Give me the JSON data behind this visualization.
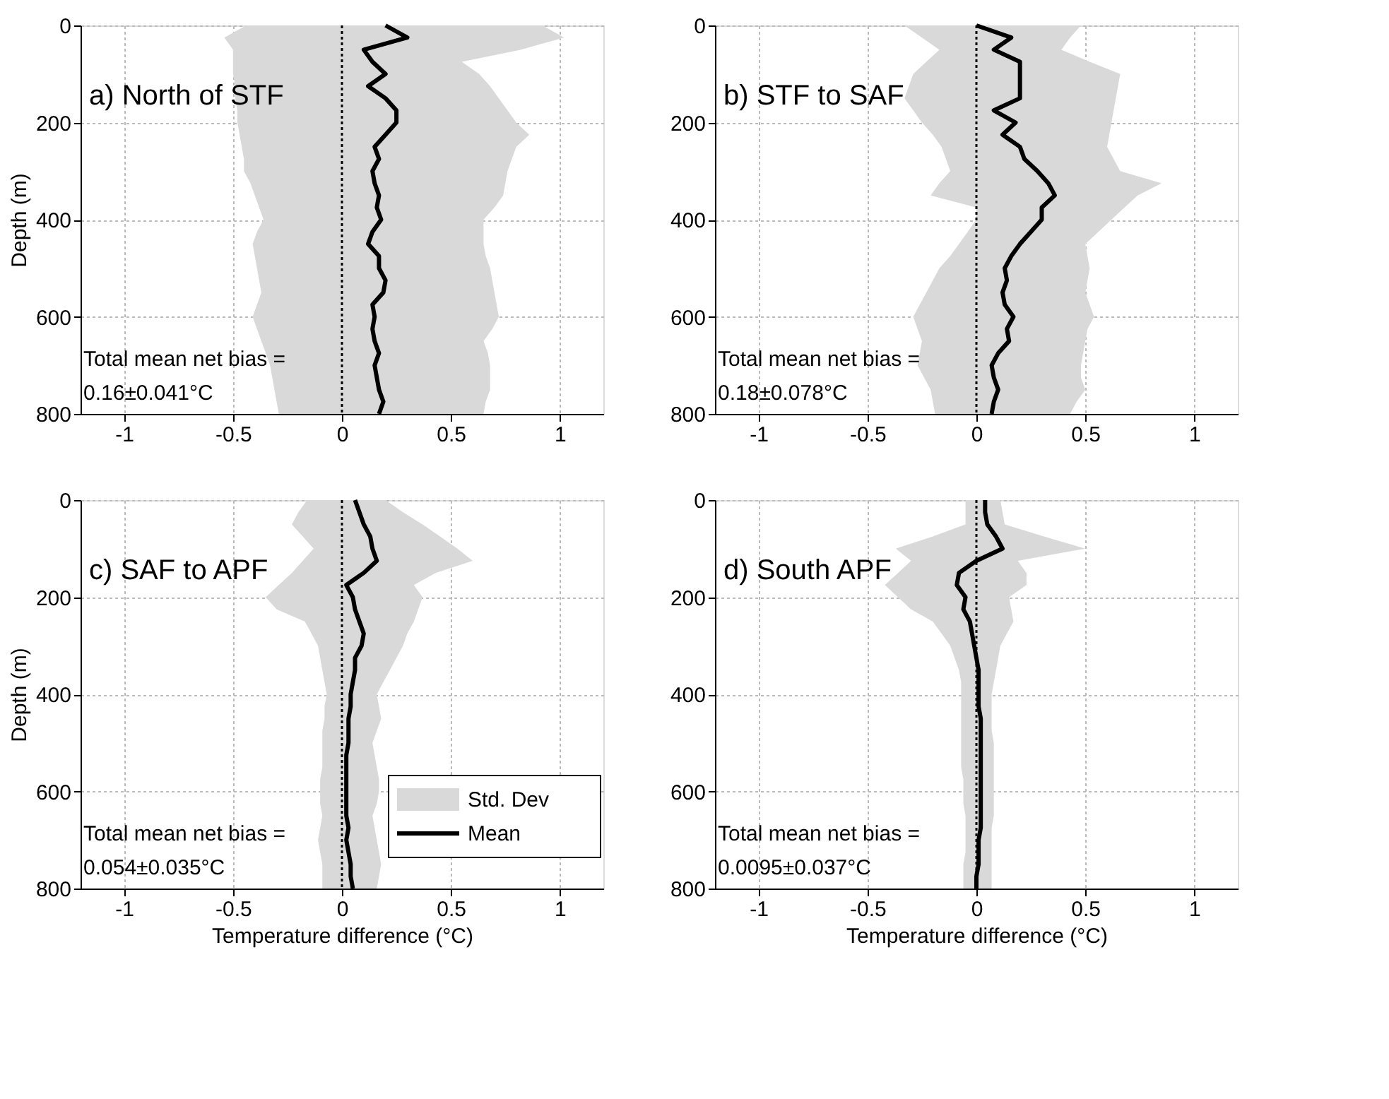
{
  "chart_data": [
    {
      "type": "line",
      "title": "a) North of STF",
      "ylabel": "Depth (m)",
      "orientation": "horizontal",
      "grid": true,
      "line_style": "solid",
      "marker": "none",
      "x": [
        0,
        25,
        50,
        75,
        100,
        125,
        150,
        175,
        200,
        225,
        250,
        275,
        300,
        325,
        350,
        375,
        400,
        425,
        450,
        475,
        500,
        525,
        550,
        575,
        600,
        625,
        650,
        675,
        700,
        725,
        750,
        775,
        800
      ],
      "xlim": [
        -1.2,
        1.2
      ],
      "xticks": [
        -1,
        -0.5,
        0,
        0.5,
        1
      ],
      "ylim": [
        800,
        0
      ],
      "yticks": [
        0,
        200,
        400,
        600,
        800
      ],
      "ref_lines": [
        {
          "axis": "x",
          "value": 0,
          "color": "#000000",
          "line_style": "dotted"
        }
      ],
      "annotations": [
        "Total mean net bias =\n0.16±0.041°C"
      ],
      "series": [
        {
          "color": "#000000",
          "values": [
            0.2,
            0.3,
            0.1,
            0.14,
            0.2,
            0.12,
            0.2,
            0.25,
            0.25,
            0.2,
            0.15,
            0.17,
            0.14,
            0.15,
            0.17,
            0.16,
            0.18,
            0.14,
            0.12,
            0.17,
            0.17,
            0.2,
            0.19,
            0.14,
            0.15,
            0.14,
            0.15,
            0.17,
            0.15,
            0.16,
            0.17,
            0.19,
            0.17
          ],
          "lower": [
            -0.44,
            -0.54,
            -0.5,
            -0.5,
            -0.5,
            -0.49,
            -0.49,
            -0.48,
            -0.48,
            -0.47,
            -0.46,
            -0.45,
            -0.45,
            -0.42,
            -0.4,
            -0.38,
            -0.36,
            -0.39,
            -0.41,
            -0.4,
            -0.39,
            -0.38,
            -0.37,
            -0.39,
            -0.41,
            -0.39,
            -0.37,
            -0.35,
            -0.33,
            -0.32,
            -0.31,
            -0.3,
            -0.29
          ],
          "upper": [
            0.92,
            1.02,
            0.82,
            0.55,
            0.63,
            0.68,
            0.72,
            0.76,
            0.8,
            0.86,
            0.8,
            0.78,
            0.76,
            0.75,
            0.74,
            0.7,
            0.65,
            0.65,
            0.65,
            0.66,
            0.68,
            0.69,
            0.7,
            0.71,
            0.72,
            0.69,
            0.65,
            0.67,
            0.68,
            0.68,
            0.68,
            0.66,
            0.65
          ]
        }
      ]
    },
    {
      "type": "line",
      "title": "b) STF to SAF",
      "orientation": "horizontal",
      "grid": true,
      "line_style": "solid",
      "marker": "none",
      "x": [
        0,
        25,
        50,
        75,
        100,
        125,
        150,
        175,
        200,
        225,
        250,
        275,
        300,
        325,
        350,
        375,
        400,
        425,
        450,
        475,
        500,
        525,
        550,
        575,
        600,
        625,
        650,
        675,
        700,
        725,
        750,
        775,
        800
      ],
      "xlim": [
        -1.2,
        1.2
      ],
      "xticks": [
        -1,
        -0.5,
        0,
        0.5,
        1
      ],
      "ylim": [
        800,
        0
      ],
      "yticks": [
        0,
        200,
        400,
        600,
        800
      ],
      "ref_lines": [
        {
          "axis": "x",
          "value": 0,
          "color": "#000000",
          "line_style": "dotted"
        }
      ],
      "annotations": [
        "Total mean net bias =\n0.18±0.078°C"
      ],
      "series": [
        {
          "color": "#000000",
          "values": [
            0.0,
            0.16,
            0.08,
            0.2,
            0.2,
            0.2,
            0.2,
            0.08,
            0.18,
            0.12,
            0.2,
            0.22,
            0.28,
            0.33,
            0.36,
            0.3,
            0.3,
            0.25,
            0.2,
            0.16,
            0.13,
            0.14,
            0.12,
            0.13,
            0.17,
            0.14,
            0.15,
            0.1,
            0.07,
            0.08,
            0.1,
            0.08,
            0.07
          ],
          "lower": [
            -0.33,
            -0.25,
            -0.17,
            -0.23,
            -0.29,
            -0.31,
            -0.33,
            -0.29,
            -0.25,
            -0.2,
            -0.16,
            -0.14,
            -0.12,
            -0.17,
            -0.21,
            0,
            0,
            -0.04,
            -0.08,
            -0.12,
            -0.17,
            -0.2,
            -0.23,
            -0.26,
            -0.29,
            -0.27,
            -0.25,
            -0.26,
            -0.27,
            -0.24,
            -0.21,
            -0.2,
            -0.19
          ],
          "upper": [
            0.48,
            0.43,
            0.39,
            0.52,
            0.66,
            0.65,
            0.64,
            0.63,
            0.62,
            0.61,
            0.6,
            0.63,
            0.66,
            0.85,
            0.74,
            0.68,
            0.62,
            0.56,
            0.5,
            0.51,
            0.52,
            0.51,
            0.5,
            0.52,
            0.54,
            0.51,
            0.5,
            0.49,
            0.48,
            0.48,
            0.5,
            0.46,
            0.43
          ]
        }
      ]
    },
    {
      "type": "line",
      "title": "c) SAF to APF",
      "xlabel": "Temperature difference (°C)",
      "ylabel": "Depth (m)",
      "orientation": "horizontal",
      "grid": true,
      "legend": "bottom right",
      "line_style": "solid",
      "marker": "none",
      "x": [
        0,
        25,
        50,
        75,
        100,
        125,
        150,
        175,
        200,
        225,
        250,
        275,
        300,
        325,
        350,
        375,
        400,
        425,
        450,
        475,
        500,
        525,
        550,
        575,
        600,
        625,
        650,
        675,
        700,
        725,
        750,
        775,
        800
      ],
      "xlim": [
        -1.2,
        1.2
      ],
      "xticks": [
        -1,
        -0.5,
        0,
        0.5,
        1
      ],
      "ylim": [
        800,
        0
      ],
      "yticks": [
        0,
        200,
        400,
        600,
        800
      ],
      "ref_lines": [
        {
          "axis": "x",
          "value": 0,
          "color": "#000000",
          "line_style": "dotted"
        }
      ],
      "annotations": [
        "Total mean net bias =\n0.054±0.035°C",
        "Std. Dev"
      ],
      "series": [
        {
          "name": "Mean",
          "color": "#000000",
          "values": [
            0.06,
            0.08,
            0.1,
            0.13,
            0.14,
            0.16,
            0.1,
            0.02,
            0.05,
            0.06,
            0.08,
            0.1,
            0.09,
            0.06,
            0.06,
            0.05,
            0.04,
            0.04,
            0.03,
            0.03,
            0.03,
            0.02,
            0.02,
            0.02,
            0.02,
            0.02,
            0.02,
            0.03,
            0.02,
            0.03,
            0.04,
            0.04,
            0.05
          ],
          "lower": [
            -0.16,
            -0.2,
            -0.23,
            -0.18,
            -0.13,
            -0.18,
            -0.23,
            -0.29,
            -0.35,
            -0.3,
            -0.17,
            -0.14,
            -0.11,
            -0.1,
            -0.09,
            -0.08,
            -0.07,
            -0.08,
            -0.08,
            -0.09,
            -0.09,
            -0.09,
            -0.09,
            -0.1,
            -0.1,
            -0.1,
            -0.09,
            -0.1,
            -0.11,
            -0.1,
            -0.09,
            -0.09,
            -0.09
          ],
          "upper": [
            0.2,
            0.28,
            0.37,
            0.45,
            0.53,
            0.6,
            0.43,
            0.33,
            0.37,
            0.35,
            0.33,
            0.3,
            0.28,
            0.25,
            0.22,
            0.19,
            0.16,
            0.17,
            0.18,
            0.16,
            0.14,
            0.15,
            0.16,
            0.17,
            0.17,
            0.16,
            0.14,
            0.15,
            0.16,
            0.17,
            0.18,
            0.17,
            0.16
          ]
        }
      ]
    },
    {
      "type": "line",
      "title": "d) South APF",
      "xlabel": "Temperature difference (°C)",
      "orientation": "horizontal",
      "grid": true,
      "line_style": "solid",
      "marker": "none",
      "x": [
        0,
        25,
        50,
        75,
        100,
        125,
        150,
        175,
        200,
        225,
        250,
        275,
        300,
        325,
        350,
        375,
        400,
        425,
        450,
        475,
        500,
        525,
        550,
        575,
        600,
        625,
        650,
        675,
        700,
        725,
        750,
        775,
        800
      ],
      "xlim": [
        -1.2,
        1.2
      ],
      "xticks": [
        -1,
        -0.5,
        0,
        0.5,
        1
      ],
      "ylim": [
        800,
        0
      ],
      "yticks": [
        0,
        200,
        400,
        600,
        800
      ],
      "ref_lines": [
        {
          "axis": "x",
          "value": 0,
          "color": "#000000",
          "line_style": "dotted"
        }
      ],
      "annotations": [
        "Total mean net bias =\n0.0095±0.037°C"
      ],
      "series": [
        {
          "color": "#000000",
          "values": [
            0.04,
            0.04,
            0.05,
            0.09,
            0.12,
            0.0,
            -0.08,
            -0.09,
            -0.05,
            -0.06,
            -0.03,
            -0.02,
            -0.01,
            0.0,
            0.01,
            0.01,
            0.01,
            0.01,
            0.02,
            0.02,
            0.02,
            0.02,
            0.02,
            0.02,
            0.02,
            0.02,
            0.02,
            0.02,
            0.01,
            0.01,
            0.01,
            0.0,
            0.0
          ],
          "lower": [
            -0.05,
            -0.05,
            -0.05,
            -0.2,
            -0.37,
            -0.3,
            -0.36,
            -0.42,
            -0.36,
            -0.3,
            -0.2,
            -0.16,
            -0.12,
            -0.1,
            -0.08,
            -0.07,
            -0.07,
            -0.07,
            -0.07,
            -0.07,
            -0.07,
            -0.07,
            -0.07,
            -0.06,
            -0.06,
            -0.06,
            -0.05,
            -0.05,
            -0.05,
            -0.05,
            -0.06,
            -0.06,
            -0.06
          ],
          "upper": [
            0.11,
            0.12,
            0.13,
            0.31,
            0.5,
            0.19,
            0.23,
            0.23,
            0.15,
            0.16,
            0.17,
            0.14,
            0.11,
            0.1,
            0.09,
            0.08,
            0.07,
            0.07,
            0.07,
            0.07,
            0.08,
            0.08,
            0.08,
            0.08,
            0.08,
            0.08,
            0.08,
            0.07,
            0.07,
            0.07,
            0.07,
            0.07,
            0.07
          ]
        }
      ]
    }
  ]
}
